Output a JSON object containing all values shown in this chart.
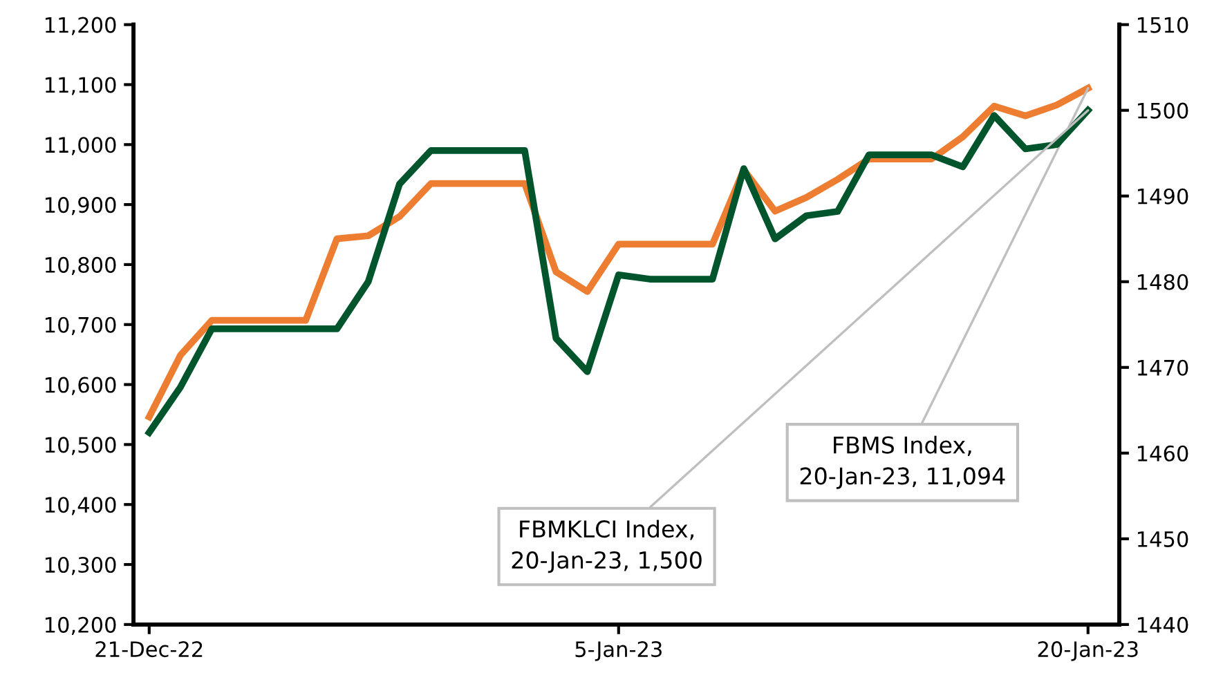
{
  "chart_data": {
    "type": "line",
    "x": [
      "2022-12-21",
      "2022-12-22",
      "2022-12-23",
      "2022-12-24",
      "2022-12-25",
      "2022-12-26",
      "2022-12-27",
      "2022-12-28",
      "2022-12-29",
      "2022-12-30",
      "2022-12-31",
      "2023-01-01",
      "2023-01-02",
      "2023-01-03",
      "2023-01-04",
      "2023-01-05",
      "2023-01-06",
      "2023-01-07",
      "2023-01-08",
      "2023-01-09",
      "2023-01-10",
      "2023-01-11",
      "2023-01-12",
      "2023-01-13",
      "2023-01-14",
      "2023-01-15",
      "2023-01-16",
      "2023-01-17",
      "2023-01-18",
      "2023-01-19",
      "2023-01-20"
    ],
    "series": [
      {
        "color": "#ed7d31",
        "values": [
          10546,
          10649,
          10707,
          10707,
          10707,
          10707,
          10843,
          10848,
          10880,
          10935,
          10935,
          10935,
          10935,
          10788,
          10755,
          10834,
          10834,
          10834,
          10834,
          10958,
          10889,
          10912,
          10942,
          10976,
          10976,
          10976,
          11013,
          11064,
          11048,
          11066,
          11094
        ]
      },
      {
        "color": "#00552c",
        "axis": "y2",
        "values": [
          1462.4,
          1467.7,
          1474.5,
          1474.5,
          1474.5,
          1474.5,
          1474.5,
          1480.0,
          1491.4,
          1495.3,
          1495.3,
          1495.3,
          1495.3,
          1473.4,
          1469.5,
          1480.8,
          1480.3,
          1480.3,
          1480.3,
          1493.2,
          1485.0,
          1487.7,
          1488.2,
          1494.8,
          1494.8,
          1494.8,
          1493.4,
          1499.4,
          1495.5,
          1496.0,
          1500
        ]
      }
    ],
    "xlim": [
      "2022-12-20T12:00",
      "2023-01-21T00:00"
    ],
    "xticks": [
      {
        "value": "2022-12-21",
        "label": "21-Dec-22"
      },
      {
        "value": "2023-01-05",
        "label": "5-Jan-23"
      },
      {
        "value": "2023-01-20",
        "label": "20-Jan-23"
      }
    ],
    "ylim": [
      10200,
      11200
    ],
    "yticks": [
      {
        "value": 10200,
        "label": "10,200"
      },
      {
        "value": 10300,
        "label": "10,300"
      },
      {
        "value": 10400,
        "label": "10,400"
      },
      {
        "value": 10500,
        "label": "10,500"
      },
      {
        "value": 10600,
        "label": "10,600"
      },
      {
        "value": 10700,
        "label": "10,700"
      },
      {
        "value": 10800,
        "label": "10,800"
      },
      {
        "value": 10900,
        "label": "10,900"
      },
      {
        "value": 11000,
        "label": "11,000"
      },
      {
        "value": 11100,
        "label": "11,100"
      },
      {
        "value": 11200,
        "label": "11,200"
      }
    ],
    "y2lim": [
      1440,
      1510
    ],
    "y2ticks": [
      1440,
      1450,
      1460,
      1470,
      1480,
      1490,
      1500,
      1510
    ],
    "grid": false,
    "legend": false,
    "annotations": [
      "FBMKLCI Index,\n20-Jan-23, 1,500",
      {
        "text": "FBMS Index,\n20-Jan-23, 11,094",
        "x": "2023-01-20",
        "y": 11094
      }
    ]
  }
}
